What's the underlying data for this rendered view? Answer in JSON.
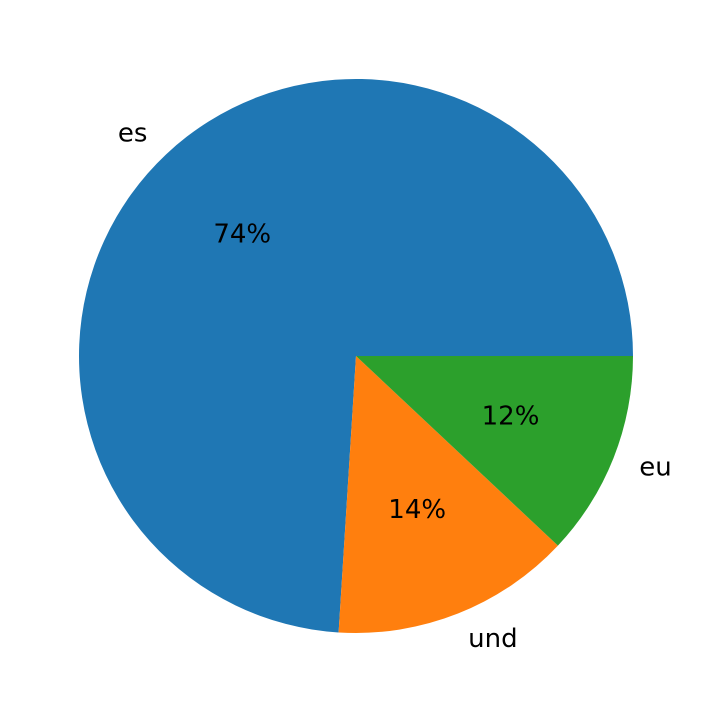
{
  "chart_data": {
    "type": "pie",
    "categories": [
      "es",
      "und",
      "eu"
    ],
    "values": [
      74,
      14,
      12
    ],
    "value_labels": [
      "74%",
      "14%",
      "12%"
    ],
    "colors": [
      "#1f77b4",
      "#ff7f0e",
      "#2ca02c"
    ]
  }
}
